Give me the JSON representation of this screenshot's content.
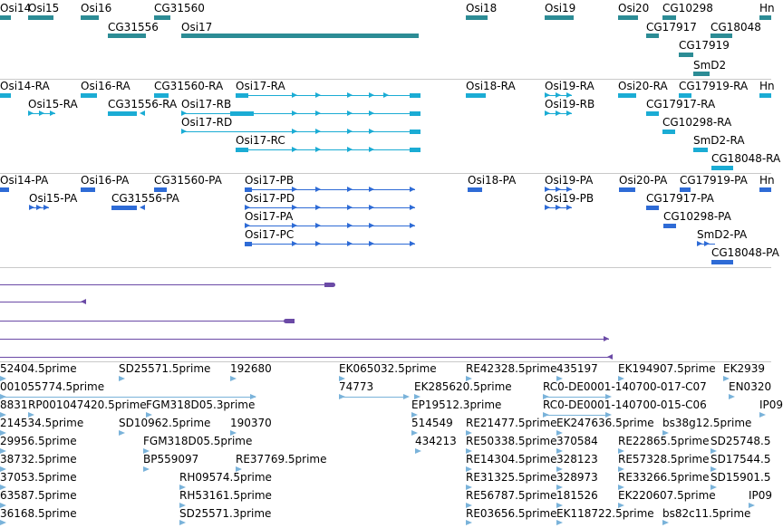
{
  "colors": {
    "gene": "#2c8c95",
    "transcript": "#1bacd4",
    "protein": "#2e6bd6",
    "alignment": "#6b4aa6",
    "est": "#7ab3da",
    "separator": "#c9c9c9"
  },
  "tracks": {
    "genes": {
      "labels": [
        "Osi14",
        "Osi15",
        "Osi16",
        "CG31560",
        "CG31556",
        "Osi17",
        "Osi18",
        "Osi19",
        "Osi20",
        "CG10298",
        "CG17917",
        "CG18048",
        "Hn",
        "CG17919",
        "SmD2"
      ]
    },
    "transcripts": {
      "labels": [
        "Osi14-RA",
        "Osi16-RA",
        "CG31560-RA",
        "Osi17-RA",
        "Osi18-RA",
        "Osi19-RA",
        "Osi20-RA",
        "CG17919-RA",
        "Hn",
        "Osi15-RA",
        "CG31556-RA",
        "Osi17-RB",
        "Osi19-RB",
        "CG17917-RA",
        "Osi17-RD",
        "CG10298-RA",
        "Osi17-RC",
        "SmD2-RA",
        "CG18048-RA"
      ]
    },
    "proteins": {
      "labels": [
        "Osi14-PA",
        "Osi16-PA",
        "CG31560-PA",
        "Osi17-PB",
        "Osi18-PA",
        "Osi19-PA",
        "Osi20-PA",
        "CG17919-PA",
        "Hn",
        "Osi15-PA",
        "CG31556-PA",
        "Osi17-PD",
        "Osi19-PB",
        "CG17917-PA",
        "Osi17-PA",
        "CG10298-PA",
        "Osi17-PC",
        "SmD2-PA",
        "CG18048-PA"
      ]
    },
    "ests": {
      "labels": [
        "52404.5prime",
        "SD25571.5prime",
        "192680",
        "EK065032.5prime",
        "RE42328.5prime",
        "435197",
        "EK194907.5prime",
        "EK2939",
        "001055774.5prime",
        "74773",
        "EK285620.5prime",
        "RC0-DE0001-140700-017-C07",
        "EN0320",
        "8831",
        "RP001047420.5prime",
        "FGM318D05.3prime",
        "EP19512.3prime",
        "RC0-DE0001-140700-015-C06",
        "IP09",
        "214534.5prime",
        "SD10962.5prime",
        "190370",
        "514549",
        "RE21477.5prime",
        "EK247636.5prime",
        "bs38g12.5prime",
        "29956.5prime",
        "FGM318D05.5prime",
        "434213",
        "RE50338.5prime",
        "370584",
        "RE22865.5prime",
        "SD25748.5",
        "38732.5prime",
        "BP559097",
        "RE37769.5prime",
        "RE14304.5prime",
        "328123",
        "RE57328.5prime",
        "SD17544.5",
        "37053.5prime",
        "RH09574.5prime",
        "RE31325.5prime",
        "328973",
        "RE33266.5prime",
        "SD15901.5",
        "63587.5prime",
        "RH53161.5prime",
        "RE56787.5prime",
        "181526",
        "EK220607.5prime",
        "IP09",
        "36168.5prime",
        "SD25571.3prime",
        "RE03656.5prime",
        "EK118722.5prime",
        "bs82c11.5prime"
      ]
    }
  }
}
